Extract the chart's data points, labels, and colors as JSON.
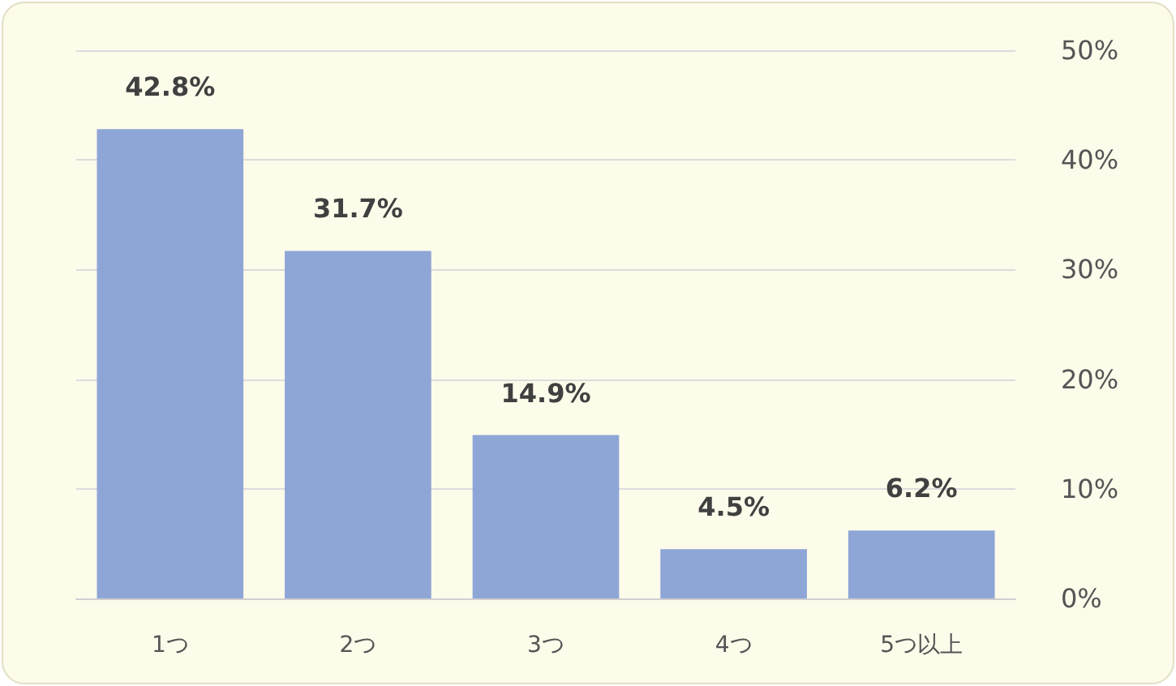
{
  "chart_data": {
    "type": "bar",
    "categories": [
      "1つ",
      "2つ",
      "3つ",
      "4つ",
      "5つ以上"
    ],
    "values": [
      42.8,
      31.7,
      14.9,
      4.5,
      6.2
    ],
    "value_labels": [
      "42.8%",
      "31.7%",
      "14.9%",
      "4.5%",
      "6.2%"
    ],
    "color": "#8ea6d6",
    "ylim": [
      0,
      50
    ],
    "yticks": [
      {
        "value": 0,
        "label": "0%"
      },
      {
        "value": 10,
        "label": "10%"
      },
      {
        "value": 20,
        "label": "20%"
      },
      {
        "value": 30,
        "label": "30%"
      },
      {
        "value": 40,
        "label": "40%"
      },
      {
        "value": 50,
        "label": "50%"
      }
    ],
    "grid": "y"
  }
}
